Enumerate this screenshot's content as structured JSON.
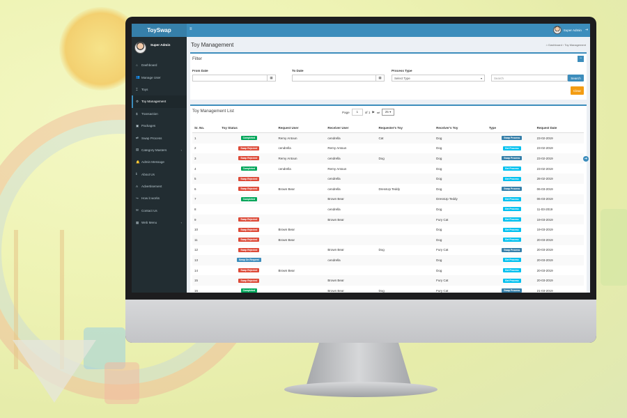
{
  "app": {
    "logo": "ToySwap",
    "user": "Super Admin"
  },
  "colors": {
    "primary": "#3c8dbc",
    "sidebar": "#222d32",
    "completed": "#00a65a",
    "rejected": "#dd4b39",
    "onrequest": "#3c8dbc",
    "get_process": "#00c0ef",
    "swap_process": "#367fa9",
    "clear": "#f39c12"
  },
  "sidebar": {
    "items": [
      {
        "label": "Dashboard",
        "icon": "dashboard-icon",
        "glyph": "⌂"
      },
      {
        "label": "Manage User",
        "icon": "users-icon",
        "glyph": "👥"
      },
      {
        "label": "Toys",
        "icon": "toy-icon",
        "glyph": "⌶"
      },
      {
        "label": "Toy Management",
        "icon": "cogs-icon",
        "glyph": "⚙"
      },
      {
        "label": "Transaction",
        "icon": "dollar-icon",
        "glyph": "$"
      },
      {
        "label": "Packages",
        "icon": "package-icon",
        "glyph": "▣"
      },
      {
        "label": "Swap Process",
        "icon": "exchange-icon",
        "glyph": "⇄"
      },
      {
        "label": "Category Masters",
        "icon": "list-icon",
        "glyph": "▤"
      },
      {
        "label": "Admin Message",
        "icon": "bell-icon",
        "glyph": "🔔"
      },
      {
        "label": "About Us",
        "icon": "info-icon",
        "glyph": "ℹ"
      },
      {
        "label": "Advertisement",
        "icon": "font-icon",
        "glyph": "A"
      },
      {
        "label": "How it works",
        "icon": "share-icon",
        "glyph": "↪"
      },
      {
        "label": "Contact Us",
        "icon": "envelope-icon",
        "glyph": "✉"
      },
      {
        "label": "Web Menu",
        "icon": "table-icon",
        "glyph": "▦"
      }
    ]
  },
  "header": {
    "title": "Toy Management",
    "breadcrumb_home": "Dashboard",
    "breadcrumb_sep": "›",
    "breadcrumb_current": "Toy Management"
  },
  "filter": {
    "title": "Filter",
    "from_label": "From Date",
    "to_label": "To Date",
    "type_label": "Process Type",
    "type_value": "Select Type",
    "search_placeholder": "Search",
    "search_button": "Search",
    "clear_button": "Clear"
  },
  "list": {
    "title": "Toy Management List",
    "page_label": "Page",
    "page_value": "1",
    "page_of": "of 1",
    "page_size": "25",
    "columns": [
      "Sr. No.",
      "Toy Status",
      "Request User",
      "Receiver User",
      "Requester's Toy",
      "Receiver's Toy",
      "Type",
      "Request Date"
    ],
    "rows": [
      {
        "sr": "1",
        "status": "Completed",
        "req": "Remy Antoun",
        "rec": "cendrella",
        "rtoy": "Cat",
        "rectoy": "Dog",
        "type": "Swap Process",
        "date": "23-02-2019"
      },
      {
        "sr": "2",
        "status": "Swap Rejected",
        "req": "cendrella",
        "rec": "Remy Antoun",
        "rtoy": "",
        "rectoy": "Dog",
        "type": "Get Process",
        "date": "23-02-2019"
      },
      {
        "sr": "3",
        "status": "Swap Rejected",
        "req": "Remy Antoun",
        "rec": "cendrella",
        "rtoy": "Dog",
        "rectoy": "Dog",
        "type": "Swap Process",
        "date": "23-02-2019"
      },
      {
        "sr": "4",
        "status": "Completed",
        "req": "cendrella",
        "rec": "Remy Antoun",
        "rtoy": "",
        "rectoy": "Dog",
        "type": "Get Process",
        "date": "23-02-2019"
      },
      {
        "sr": "5",
        "status": "Swap Rejected",
        "req": "",
        "rec": "cendrella",
        "rtoy": "",
        "rectoy": "Dog",
        "type": "Get Process",
        "date": "28-02-2019"
      },
      {
        "sr": "6",
        "status": "Swap Rejected",
        "req": "Brown Bear",
        "rec": "cendrella",
        "rtoy": "DressUp Teddy",
        "rectoy": "Dog",
        "type": "Swap Process",
        "date": "06-03-2019"
      },
      {
        "sr": "7",
        "status": "Completed",
        "req": "",
        "rec": "Brown Bear",
        "rtoy": "",
        "rectoy": "DressUp Teddy",
        "type": "Get Process",
        "date": "06-03-2019"
      },
      {
        "sr": "8",
        "status": "",
        "req": "",
        "rec": "cendrella",
        "rtoy": "",
        "rectoy": "Dog",
        "type": "Get Process",
        "date": "11-03-2019"
      },
      {
        "sr": "9",
        "status": "Swap Rejected",
        "req": "",
        "rec": "Brown Bear",
        "rtoy": "",
        "rectoy": "Fury Cat",
        "type": "Get Process",
        "date": "19-03-2019"
      },
      {
        "sr": "10",
        "status": "Swap Rejected",
        "req": "Brown Bear",
        "rec": "",
        "rtoy": "",
        "rectoy": "Dog",
        "type": "Get Process",
        "date": "19-03-2019"
      },
      {
        "sr": "11",
        "status": "Swap Rejected",
        "req": "Brown Bear",
        "rec": "",
        "rtoy": "",
        "rectoy": "Dog",
        "type": "Get Process",
        "date": "20-03-2019"
      },
      {
        "sr": "12",
        "status": "Swap Rejected",
        "req": "",
        "rec": "Brown Bear",
        "rtoy": "Dog",
        "rectoy": "Fury Cat",
        "type": "Swap Process",
        "date": "20-03-2019"
      },
      {
        "sr": "13",
        "status": "Swap On Request",
        "req": "",
        "rec": "cendrella",
        "rtoy": "",
        "rectoy": "Dog",
        "type": "Get Process",
        "date": "20-03-2019"
      },
      {
        "sr": "14",
        "status": "Swap Rejected",
        "req": "Brown Bear",
        "rec": "",
        "rtoy": "",
        "rectoy": "Dog",
        "type": "Get Process",
        "date": "20-03-2019"
      },
      {
        "sr": "15",
        "status": "Swap Rejected",
        "req": "",
        "rec": "Brown Bear",
        "rtoy": "",
        "rectoy": "Fury Cat",
        "type": "Get Process",
        "date": "20-03-2019"
      },
      {
        "sr": "16",
        "status": "Completed",
        "req": "",
        "rec": "Brown Bear",
        "rtoy": "Dog",
        "rectoy": "Fury Cat",
        "type": "Swap Process",
        "date": "21-03-2019"
      }
    ]
  }
}
